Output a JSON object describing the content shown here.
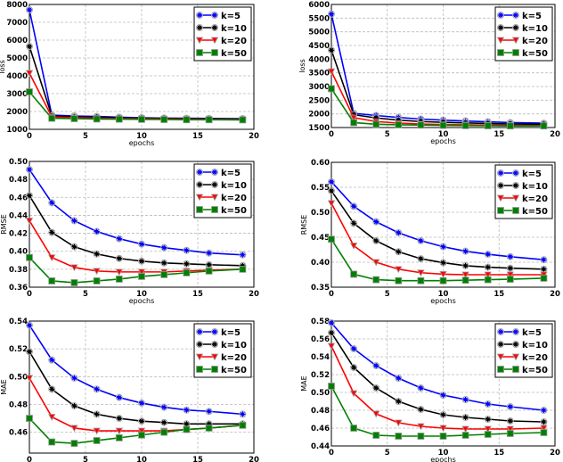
{
  "chart_data": [
    {
      "type": "line",
      "title": "",
      "xlabel": "epochs",
      "ylabel": "loss",
      "xlim": [
        0,
        20
      ],
      "ylim": [
        1000,
        8000
      ],
      "xticks": [
        0,
        5,
        10,
        15,
        20
      ],
      "yticks": [
        1000,
        2000,
        3000,
        4000,
        5000,
        6000,
        7000,
        8000
      ],
      "grid": true,
      "legend": "top-right",
      "x": [
        0,
        2,
        4,
        6,
        8,
        10,
        12,
        14,
        16,
        19
      ],
      "series": [
        {
          "name": "k=5",
          "values": [
            7700,
            1800,
            1750,
            1720,
            1680,
            1650,
            1630,
            1620,
            1610,
            1600
          ]
        },
        {
          "name": "k=10",
          "values": [
            5650,
            1750,
            1700,
            1680,
            1650,
            1630,
            1610,
            1600,
            1590,
            1580
          ]
        },
        {
          "name": "k=20",
          "values": [
            4150,
            1700,
            1650,
            1620,
            1600,
            1590,
            1580,
            1570,
            1560,
            1550
          ]
        },
        {
          "name": "k=50",
          "values": [
            3100,
            1620,
            1600,
            1580,
            1570,
            1560,
            1550,
            1540,
            1540,
            1530
          ]
        }
      ]
    },
    {
      "type": "line",
      "title": "",
      "xlabel": "epochs",
      "ylabel": "loss",
      "xlim": [
        0,
        20
      ],
      "ylim": [
        1500,
        6000
      ],
      "xticks": [
        0,
        5,
        10,
        15,
        20
      ],
      "yticks": [
        1500,
        2000,
        2500,
        3000,
        3500,
        4000,
        4500,
        5000,
        5500,
        6000
      ],
      "grid": true,
      "legend": "top-right",
      "x": [
        0,
        2,
        4,
        6,
        8,
        10,
        12,
        14,
        16,
        19
      ],
      "series": [
        {
          "name": "k=5",
          "values": [
            5650,
            2020,
            1940,
            1870,
            1810,
            1770,
            1740,
            1710,
            1680,
            1660
          ]
        },
        {
          "name": "k=10",
          "values": [
            4330,
            1970,
            1850,
            1770,
            1720,
            1690,
            1670,
            1650,
            1630,
            1620
          ]
        },
        {
          "name": "k=20",
          "values": [
            3550,
            1860,
            1720,
            1660,
            1630,
            1610,
            1600,
            1590,
            1580,
            1570
          ]
        },
        {
          "name": "k=50",
          "values": [
            2920,
            1680,
            1620,
            1600,
            1590,
            1580,
            1570,
            1565,
            1560,
            1560
          ]
        }
      ]
    },
    {
      "type": "line",
      "title": "",
      "xlabel": "epochs",
      "ylabel": "RMSE",
      "xlim": [
        0,
        20
      ],
      "ylim": [
        0.36,
        0.5
      ],
      "xticks": [
        0,
        5,
        10,
        15,
        20
      ],
      "yticks": [
        0.36,
        0.38,
        0.4,
        0.42,
        0.44,
        0.46,
        0.48,
        0.5
      ],
      "grid": true,
      "legend": "top-right",
      "x": [
        0,
        2,
        4,
        6,
        8,
        10,
        12,
        14,
        16,
        19
      ],
      "series": [
        {
          "name": "k=5",
          "values": [
            0.491,
            0.454,
            0.434,
            0.422,
            0.414,
            0.408,
            0.404,
            0.401,
            0.398,
            0.396
          ]
        },
        {
          "name": "k=10",
          "values": [
            0.462,
            0.421,
            0.405,
            0.397,
            0.392,
            0.389,
            0.387,
            0.386,
            0.385,
            0.384
          ]
        },
        {
          "name": "k=20",
          "values": [
            0.434,
            0.393,
            0.382,
            0.378,
            0.377,
            0.377,
            0.377,
            0.378,
            0.379,
            0.38
          ]
        },
        {
          "name": "k=50",
          "values": [
            0.393,
            0.367,
            0.365,
            0.367,
            0.369,
            0.372,
            0.374,
            0.376,
            0.378,
            0.38
          ]
        }
      ]
    },
    {
      "type": "line",
      "title": "",
      "xlabel": "epochs",
      "ylabel": "RMSE",
      "xlim": [
        0,
        20
      ],
      "ylim": [
        0.35,
        0.6
      ],
      "xticks": [
        0,
        5,
        10,
        15,
        20
      ],
      "yticks": [
        0.35,
        0.4,
        0.45,
        0.5,
        0.55,
        0.6
      ],
      "grid": true,
      "legend": "top-right",
      "x": [
        0,
        2,
        4,
        6,
        8,
        10,
        12,
        14,
        16,
        19
      ],
      "series": [
        {
          "name": "k=5",
          "values": [
            0.561,
            0.512,
            0.481,
            0.459,
            0.443,
            0.431,
            0.422,
            0.416,
            0.411,
            0.405
          ]
        },
        {
          "name": "k=10",
          "values": [
            0.543,
            0.478,
            0.443,
            0.421,
            0.407,
            0.399,
            0.393,
            0.39,
            0.388,
            0.386
          ]
        },
        {
          "name": "k=20",
          "values": [
            0.518,
            0.433,
            0.4,
            0.386,
            0.379,
            0.376,
            0.375,
            0.375,
            0.375,
            0.375
          ]
        },
        {
          "name": "k=50",
          "values": [
            0.446,
            0.376,
            0.365,
            0.363,
            0.363,
            0.363,
            0.364,
            0.365,
            0.366,
            0.368
          ]
        }
      ]
    },
    {
      "type": "line",
      "title": "",
      "xlabel": "epochs",
      "ylabel": "MAE",
      "xlim": [
        0,
        20
      ],
      "ylim": [
        0.445,
        0.54
      ],
      "xticks": [
        0,
        5,
        10,
        15,
        20
      ],
      "yticks": [
        0.46,
        0.48,
        0.5,
        0.52,
        0.54
      ],
      "grid": true,
      "legend": "top-right",
      "x": [
        0,
        2,
        4,
        6,
        8,
        10,
        12,
        14,
        16,
        19
      ],
      "series": [
        {
          "name": "k=5",
          "values": [
            0.537,
            0.512,
            0.499,
            0.491,
            0.485,
            0.481,
            0.478,
            0.476,
            0.475,
            0.473
          ]
        },
        {
          "name": "k=10",
          "values": [
            0.518,
            0.491,
            0.479,
            0.473,
            0.47,
            0.468,
            0.467,
            0.466,
            0.466,
            0.466
          ]
        },
        {
          "name": "k=20",
          "values": [
            0.499,
            0.471,
            0.463,
            0.461,
            0.461,
            0.461,
            0.461,
            0.462,
            0.463,
            0.465
          ]
        },
        {
          "name": "k=50",
          "values": [
            0.47,
            0.453,
            0.452,
            0.454,
            0.456,
            0.458,
            0.46,
            0.462,
            0.463,
            0.465
          ]
        }
      ]
    },
    {
      "type": "line",
      "title": "",
      "xlabel": "epochs",
      "ylabel": "MAE",
      "xlim": [
        0,
        20
      ],
      "ylim": [
        0.44,
        0.58
      ],
      "xticks": [
        0,
        5,
        10,
        15,
        20
      ],
      "yticks": [
        0.44,
        0.46,
        0.48,
        0.5,
        0.52,
        0.54,
        0.56,
        0.58
      ],
      "grid": true,
      "legend": "top-right",
      "x": [
        0,
        2,
        4,
        6,
        8,
        10,
        12,
        14,
        16,
        19
      ],
      "series": [
        {
          "name": "k=5",
          "values": [
            0.578,
            0.549,
            0.53,
            0.516,
            0.505,
            0.497,
            0.492,
            0.487,
            0.484,
            0.48
          ]
        },
        {
          "name": "k=10",
          "values": [
            0.567,
            0.528,
            0.505,
            0.49,
            0.481,
            0.475,
            0.472,
            0.47,
            0.468,
            0.467
          ]
        },
        {
          "name": "k=20",
          "values": [
            0.552,
            0.499,
            0.476,
            0.466,
            0.462,
            0.46,
            0.459,
            0.459,
            0.459,
            0.46
          ]
        },
        {
          "name": "k=50",
          "values": [
            0.507,
            0.46,
            0.452,
            0.451,
            0.451,
            0.451,
            0.452,
            0.453,
            0.454,
            0.455
          ]
        }
      ]
    }
  ],
  "series_colors": [
    "#0000ff",
    "#000000",
    "#ff0000",
    "#008000"
  ],
  "series_markers": [
    "circle-star",
    "circle-star",
    "triangle-down",
    "square"
  ]
}
